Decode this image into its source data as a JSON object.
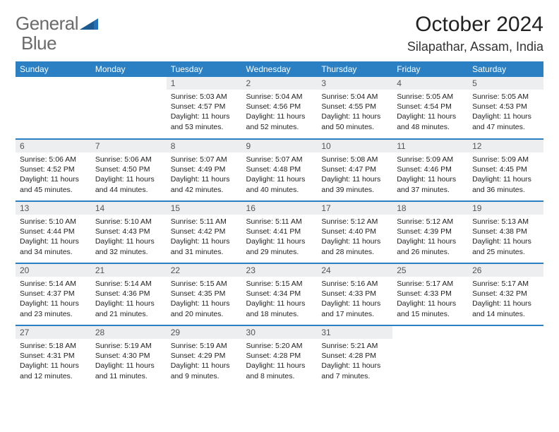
{
  "brand": {
    "text1": "General",
    "text2": "Blue"
  },
  "title": "October 2024",
  "location": "Silapathar, Assam, India",
  "colors": {
    "header_bg": "#2b80c4",
    "header_text": "#ffffff",
    "daynum_bg": "#eceeef",
    "border": "#2b80c4",
    "logo_gray": "#6b6b6b",
    "logo_blue": "#2271b8",
    "body_text": "#222222",
    "background": "#ffffff"
  },
  "weekdays": [
    "Sunday",
    "Monday",
    "Tuesday",
    "Wednesday",
    "Thursday",
    "Friday",
    "Saturday"
  ],
  "weeks": [
    [
      {
        "empty": true
      },
      {
        "empty": true
      },
      {
        "num": "1",
        "sunrise": "Sunrise: 5:03 AM",
        "sunset": "Sunset: 4:57 PM",
        "day1": "Daylight: 11 hours",
        "day2": "and 53 minutes."
      },
      {
        "num": "2",
        "sunrise": "Sunrise: 5:04 AM",
        "sunset": "Sunset: 4:56 PM",
        "day1": "Daylight: 11 hours",
        "day2": "and 52 minutes."
      },
      {
        "num": "3",
        "sunrise": "Sunrise: 5:04 AM",
        "sunset": "Sunset: 4:55 PM",
        "day1": "Daylight: 11 hours",
        "day2": "and 50 minutes."
      },
      {
        "num": "4",
        "sunrise": "Sunrise: 5:05 AM",
        "sunset": "Sunset: 4:54 PM",
        "day1": "Daylight: 11 hours",
        "day2": "and 48 minutes."
      },
      {
        "num": "5",
        "sunrise": "Sunrise: 5:05 AM",
        "sunset": "Sunset: 4:53 PM",
        "day1": "Daylight: 11 hours",
        "day2": "and 47 minutes."
      }
    ],
    [
      {
        "num": "6",
        "sunrise": "Sunrise: 5:06 AM",
        "sunset": "Sunset: 4:52 PM",
        "day1": "Daylight: 11 hours",
        "day2": "and 45 minutes."
      },
      {
        "num": "7",
        "sunrise": "Sunrise: 5:06 AM",
        "sunset": "Sunset: 4:50 PM",
        "day1": "Daylight: 11 hours",
        "day2": "and 44 minutes."
      },
      {
        "num": "8",
        "sunrise": "Sunrise: 5:07 AM",
        "sunset": "Sunset: 4:49 PM",
        "day1": "Daylight: 11 hours",
        "day2": "and 42 minutes."
      },
      {
        "num": "9",
        "sunrise": "Sunrise: 5:07 AM",
        "sunset": "Sunset: 4:48 PM",
        "day1": "Daylight: 11 hours",
        "day2": "and 40 minutes."
      },
      {
        "num": "10",
        "sunrise": "Sunrise: 5:08 AM",
        "sunset": "Sunset: 4:47 PM",
        "day1": "Daylight: 11 hours",
        "day2": "and 39 minutes."
      },
      {
        "num": "11",
        "sunrise": "Sunrise: 5:09 AM",
        "sunset": "Sunset: 4:46 PM",
        "day1": "Daylight: 11 hours",
        "day2": "and 37 minutes."
      },
      {
        "num": "12",
        "sunrise": "Sunrise: 5:09 AM",
        "sunset": "Sunset: 4:45 PM",
        "day1": "Daylight: 11 hours",
        "day2": "and 36 minutes."
      }
    ],
    [
      {
        "num": "13",
        "sunrise": "Sunrise: 5:10 AM",
        "sunset": "Sunset: 4:44 PM",
        "day1": "Daylight: 11 hours",
        "day2": "and 34 minutes."
      },
      {
        "num": "14",
        "sunrise": "Sunrise: 5:10 AM",
        "sunset": "Sunset: 4:43 PM",
        "day1": "Daylight: 11 hours",
        "day2": "and 32 minutes."
      },
      {
        "num": "15",
        "sunrise": "Sunrise: 5:11 AM",
        "sunset": "Sunset: 4:42 PM",
        "day1": "Daylight: 11 hours",
        "day2": "and 31 minutes."
      },
      {
        "num": "16",
        "sunrise": "Sunrise: 5:11 AM",
        "sunset": "Sunset: 4:41 PM",
        "day1": "Daylight: 11 hours",
        "day2": "and 29 minutes."
      },
      {
        "num": "17",
        "sunrise": "Sunrise: 5:12 AM",
        "sunset": "Sunset: 4:40 PM",
        "day1": "Daylight: 11 hours",
        "day2": "and 28 minutes."
      },
      {
        "num": "18",
        "sunrise": "Sunrise: 5:12 AM",
        "sunset": "Sunset: 4:39 PM",
        "day1": "Daylight: 11 hours",
        "day2": "and 26 minutes."
      },
      {
        "num": "19",
        "sunrise": "Sunrise: 5:13 AM",
        "sunset": "Sunset: 4:38 PM",
        "day1": "Daylight: 11 hours",
        "day2": "and 25 minutes."
      }
    ],
    [
      {
        "num": "20",
        "sunrise": "Sunrise: 5:14 AM",
        "sunset": "Sunset: 4:37 PM",
        "day1": "Daylight: 11 hours",
        "day2": "and 23 minutes."
      },
      {
        "num": "21",
        "sunrise": "Sunrise: 5:14 AM",
        "sunset": "Sunset: 4:36 PM",
        "day1": "Daylight: 11 hours",
        "day2": "and 21 minutes."
      },
      {
        "num": "22",
        "sunrise": "Sunrise: 5:15 AM",
        "sunset": "Sunset: 4:35 PM",
        "day1": "Daylight: 11 hours",
        "day2": "and 20 minutes."
      },
      {
        "num": "23",
        "sunrise": "Sunrise: 5:15 AM",
        "sunset": "Sunset: 4:34 PM",
        "day1": "Daylight: 11 hours",
        "day2": "and 18 minutes."
      },
      {
        "num": "24",
        "sunrise": "Sunrise: 5:16 AM",
        "sunset": "Sunset: 4:33 PM",
        "day1": "Daylight: 11 hours",
        "day2": "and 17 minutes."
      },
      {
        "num": "25",
        "sunrise": "Sunrise: 5:17 AM",
        "sunset": "Sunset: 4:33 PM",
        "day1": "Daylight: 11 hours",
        "day2": "and 15 minutes."
      },
      {
        "num": "26",
        "sunrise": "Sunrise: 5:17 AM",
        "sunset": "Sunset: 4:32 PM",
        "day1": "Daylight: 11 hours",
        "day2": "and 14 minutes."
      }
    ],
    [
      {
        "num": "27",
        "sunrise": "Sunrise: 5:18 AM",
        "sunset": "Sunset: 4:31 PM",
        "day1": "Daylight: 11 hours",
        "day2": "and 12 minutes."
      },
      {
        "num": "28",
        "sunrise": "Sunrise: 5:19 AM",
        "sunset": "Sunset: 4:30 PM",
        "day1": "Daylight: 11 hours",
        "day2": "and 11 minutes."
      },
      {
        "num": "29",
        "sunrise": "Sunrise: 5:19 AM",
        "sunset": "Sunset: 4:29 PM",
        "day1": "Daylight: 11 hours",
        "day2": "and 9 minutes."
      },
      {
        "num": "30",
        "sunrise": "Sunrise: 5:20 AM",
        "sunset": "Sunset: 4:28 PM",
        "day1": "Daylight: 11 hours",
        "day2": "and 8 minutes."
      },
      {
        "num": "31",
        "sunrise": "Sunrise: 5:21 AM",
        "sunset": "Sunset: 4:28 PM",
        "day1": "Daylight: 11 hours",
        "day2": "and 7 minutes."
      },
      {
        "empty": true
      },
      {
        "empty": true
      }
    ]
  ]
}
